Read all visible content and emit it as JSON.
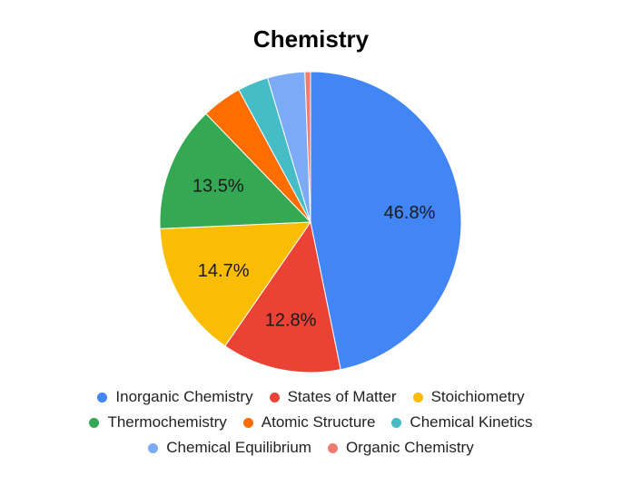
{
  "chart_data": {
    "type": "pie",
    "title": "Chemistry",
    "slices": [
      {
        "label": "Inorganic Chemistry",
        "value": 46.8,
        "color": "#4285f4",
        "display": "46.8%"
      },
      {
        "label": "States of Matter",
        "value": 12.8,
        "color": "#ea4335",
        "display": "12.8%"
      },
      {
        "label": "Stoichiometry",
        "value": 14.7,
        "color": "#fbbc04",
        "display": "14.7%"
      },
      {
        "label": "Thermochemistry",
        "value": 13.5,
        "color": "#34a853",
        "display": "13.5%"
      },
      {
        "label": "Atomic Structure",
        "value": 4.3,
        "color": "#ff6d01",
        "display": ""
      },
      {
        "label": "Chemical Kinetics",
        "value": 3.3,
        "color": "#46bdc6",
        "display": ""
      },
      {
        "label": "Chemical Equilibrium",
        "value": 4.0,
        "color": "#7baaf7",
        "display": ""
      },
      {
        "label": "Organic Chemistry",
        "value": 0.6,
        "color": "#f07b72",
        "display": ""
      }
    ],
    "legend_position": "bottom"
  }
}
